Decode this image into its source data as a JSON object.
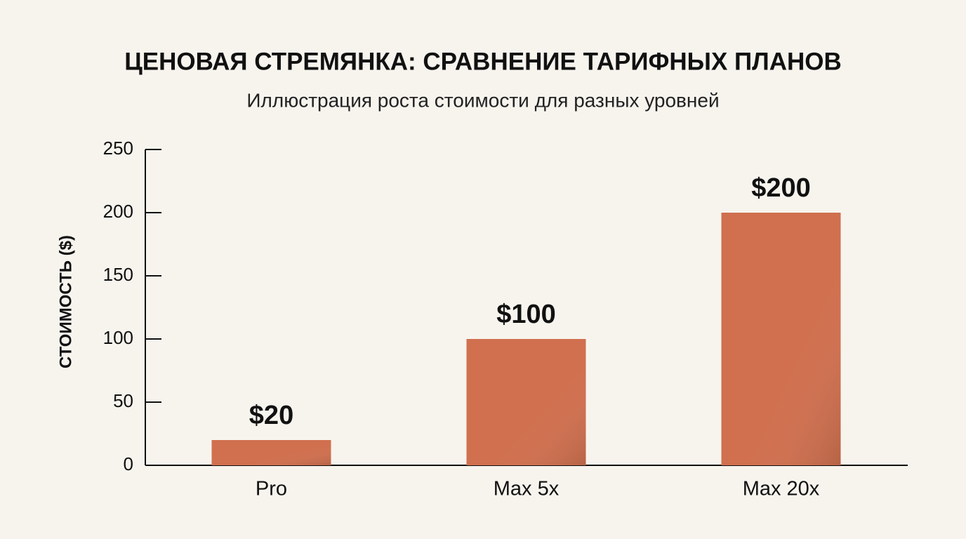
{
  "chart_data": {
    "type": "bar",
    "title": "ЦЕНОВАЯ СТРЕМЯНКА: СРАВНЕНИЕ ТАРИФНЫХ ПЛАНОВ",
    "subtitle": "Иллюстрация роста стоимости для разных уровней",
    "y_label": "СТОИМОСТЬ ($)",
    "categories": [
      "Pro",
      "Max 5x",
      "Max 20x"
    ],
    "values": [
      20,
      100,
      200
    ],
    "value_labels": [
      "$20",
      "$100",
      "$200"
    ],
    "color": "#d0704f",
    "ylim": [
      0,
      250
    ],
    "yticks": [
      0,
      50,
      100,
      150,
      200,
      250
    ],
    "grid": false
  }
}
